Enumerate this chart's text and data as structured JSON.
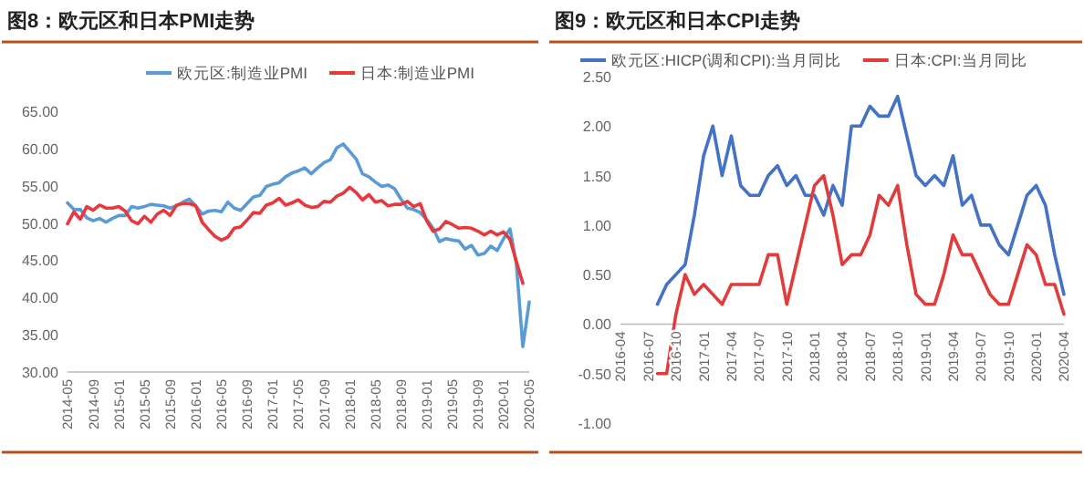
{
  "chart_data": [
    {
      "type": "line",
      "title": "图8：欧元区和日本PMI走势",
      "legend": "top",
      "categories": [
        "2014-05",
        null,
        null,
        null,
        "2014-09",
        null,
        null,
        null,
        "2015-01",
        null,
        null,
        null,
        "2015-05",
        null,
        null,
        null,
        "2015-09",
        null,
        null,
        null,
        "2016-01",
        null,
        null,
        null,
        "2016-05",
        null,
        null,
        null,
        "2016-09",
        null,
        null,
        null,
        "2017-01",
        null,
        null,
        null,
        "2017-05",
        null,
        null,
        null,
        "2017-09",
        null,
        null,
        null,
        "2018-01",
        null,
        null,
        null,
        "2018-05",
        null,
        null,
        null,
        "2018-09",
        null,
        null,
        null,
        "2019-01",
        null,
        null,
        null,
        "2019-05",
        null,
        null,
        null,
        "2019-09",
        null,
        null,
        null,
        "2020-01",
        null,
        null,
        null,
        "2020-05"
      ],
      "series": [
        {
          "name": "欧元区:制造业PMI",
          "color": "#5b9bd5",
          "values": [
            52.7,
            51.8,
            51.8,
            50.7,
            50.3,
            50.6,
            50.1,
            50.6,
            51.0,
            51.0,
            52.2,
            52.0,
            52.2,
            52.5,
            52.4,
            52.3,
            52.0,
            52.3,
            52.8,
            53.2,
            52.3,
            51.2,
            51.6,
            51.7,
            51.5,
            52.8,
            52.0,
            51.7,
            52.6,
            53.5,
            53.7,
            54.9,
            55.2,
            55.4,
            56.2,
            56.7,
            57.0,
            57.4,
            56.6,
            57.4,
            58.1,
            58.5,
            60.1,
            60.6,
            59.6,
            58.6,
            56.6,
            56.2,
            55.5,
            54.9,
            55.1,
            54.6,
            53.2,
            52.0,
            51.8,
            51.4,
            50.5,
            49.3,
            47.5,
            47.9,
            47.7,
            47.6,
            46.5,
            47.0,
            45.7,
            45.9,
            46.9,
            46.3,
            47.9,
            49.2,
            44.5,
            33.4,
            39.4
          ]
        },
        {
          "name": "日本:制造业PMI",
          "color": "#e8383d",
          "values": [
            49.9,
            51.5,
            50.5,
            52.2,
            51.7,
            52.4,
            52.0,
            52.0,
            52.2,
            51.6,
            50.3,
            49.9,
            50.9,
            50.1,
            51.2,
            51.7,
            51.0,
            52.4,
            52.6,
            52.6,
            52.3,
            50.1,
            49.1,
            48.2,
            47.7,
            48.1,
            49.3,
            49.5,
            50.4,
            51.4,
            51.3,
            52.4,
            52.7,
            53.3,
            52.4,
            52.7,
            53.1,
            52.4,
            52.1,
            52.2,
            52.9,
            52.8,
            53.6,
            54.0,
            54.8,
            54.1,
            53.1,
            53.8,
            52.8,
            53.0,
            52.3,
            52.5,
            52.5,
            52.9,
            52.2,
            52.6,
            50.3,
            48.9,
            49.2,
            50.2,
            49.8,
            49.3,
            49.4,
            49.3,
            48.9,
            48.4,
            48.9,
            48.4,
            48.8,
            47.8,
            44.8,
            41.9,
            null
          ]
        }
      ],
      "ylim": [
        30,
        65
      ],
      "yticks": [
        {
          "value": 30,
          "label": "30.00"
        },
        {
          "value": 35,
          "label": "35.00"
        },
        {
          "value": 40,
          "label": "40.00"
        },
        {
          "value": 45,
          "label": "45.00"
        },
        {
          "value": 50,
          "label": "50.00"
        },
        {
          "value": 55,
          "label": "55.00"
        },
        {
          "value": 60,
          "label": "60.00"
        },
        {
          "value": 65,
          "label": "65.00"
        }
      ]
    },
    {
      "type": "line",
      "title": "图9：欧元区和日本CPI走势",
      "legend": "top",
      "categories": [
        "2016-04",
        null,
        null,
        "2016-07",
        null,
        null,
        "2016-10",
        null,
        null,
        "2017-01",
        null,
        null,
        "2017-04",
        null,
        null,
        "2017-07",
        null,
        null,
        "2017-10",
        null,
        null,
        "2018-01",
        null,
        null,
        "2018-04",
        null,
        null,
        "2018-07",
        null,
        null,
        "2018-10",
        null,
        null,
        "2019-01",
        null,
        null,
        "2019-04",
        null,
        null,
        "2019-07",
        null,
        null,
        "2019-10",
        null,
        null,
        "2020-01",
        null,
        null,
        "2020-04"
      ],
      "series": [
        {
          "name": "欧元区:HICP(调和CPI):当月同比",
          "color": "#4472c4",
          "values": [
            null,
            null,
            null,
            null,
            0.2,
            0.4,
            0.5,
            0.6,
            1.1,
            1.7,
            2.0,
            1.5,
            1.9,
            1.4,
            1.3,
            1.3,
            1.5,
            1.6,
            1.4,
            1.5,
            1.3,
            1.3,
            1.1,
            1.4,
            1.2,
            2.0,
            2.0,
            2.2,
            2.1,
            2.1,
            2.3,
            1.9,
            1.5,
            1.4,
            1.5,
            1.4,
            1.7,
            1.2,
            1.3,
            1.0,
            1.0,
            0.8,
            0.7,
            1.0,
            1.3,
            1.4,
            1.2,
            0.7,
            0.3
          ]
        },
        {
          "name": "日本:CPI:当月同比",
          "color": "#e03c3c",
          "values": [
            null,
            null,
            null,
            null,
            -0.5,
            -0.5,
            0.1,
            0.5,
            0.3,
            0.4,
            0.3,
            0.2,
            0.4,
            0.4,
            0.4,
            0.4,
            0.7,
            0.7,
            0.2,
            0.6,
            1.0,
            1.4,
            1.5,
            1.1,
            0.6,
            0.7,
            0.7,
            0.9,
            1.3,
            1.2,
            1.4,
            0.8,
            0.3,
            0.2,
            0.2,
            0.5,
            0.9,
            0.7,
            0.7,
            0.5,
            0.3,
            0.2,
            0.2,
            0.5,
            0.8,
            0.7,
            0.4,
            0.4,
            0.1
          ]
        }
      ],
      "ylim": [
        -1,
        2.5
      ],
      "yticks": [
        {
          "value": -1,
          "label": "-1.00"
        },
        {
          "value": -0.5,
          "label": "-0.50"
        },
        {
          "value": 0,
          "label": "0.00"
        },
        {
          "value": 0.5,
          "label": "0.50"
        },
        {
          "value": 1,
          "label": "1.00"
        },
        {
          "value": 1.5,
          "label": "1.50"
        },
        {
          "value": 2,
          "label": "2.00"
        },
        {
          "value": 2.5,
          "label": "2.50"
        }
      ]
    }
  ]
}
